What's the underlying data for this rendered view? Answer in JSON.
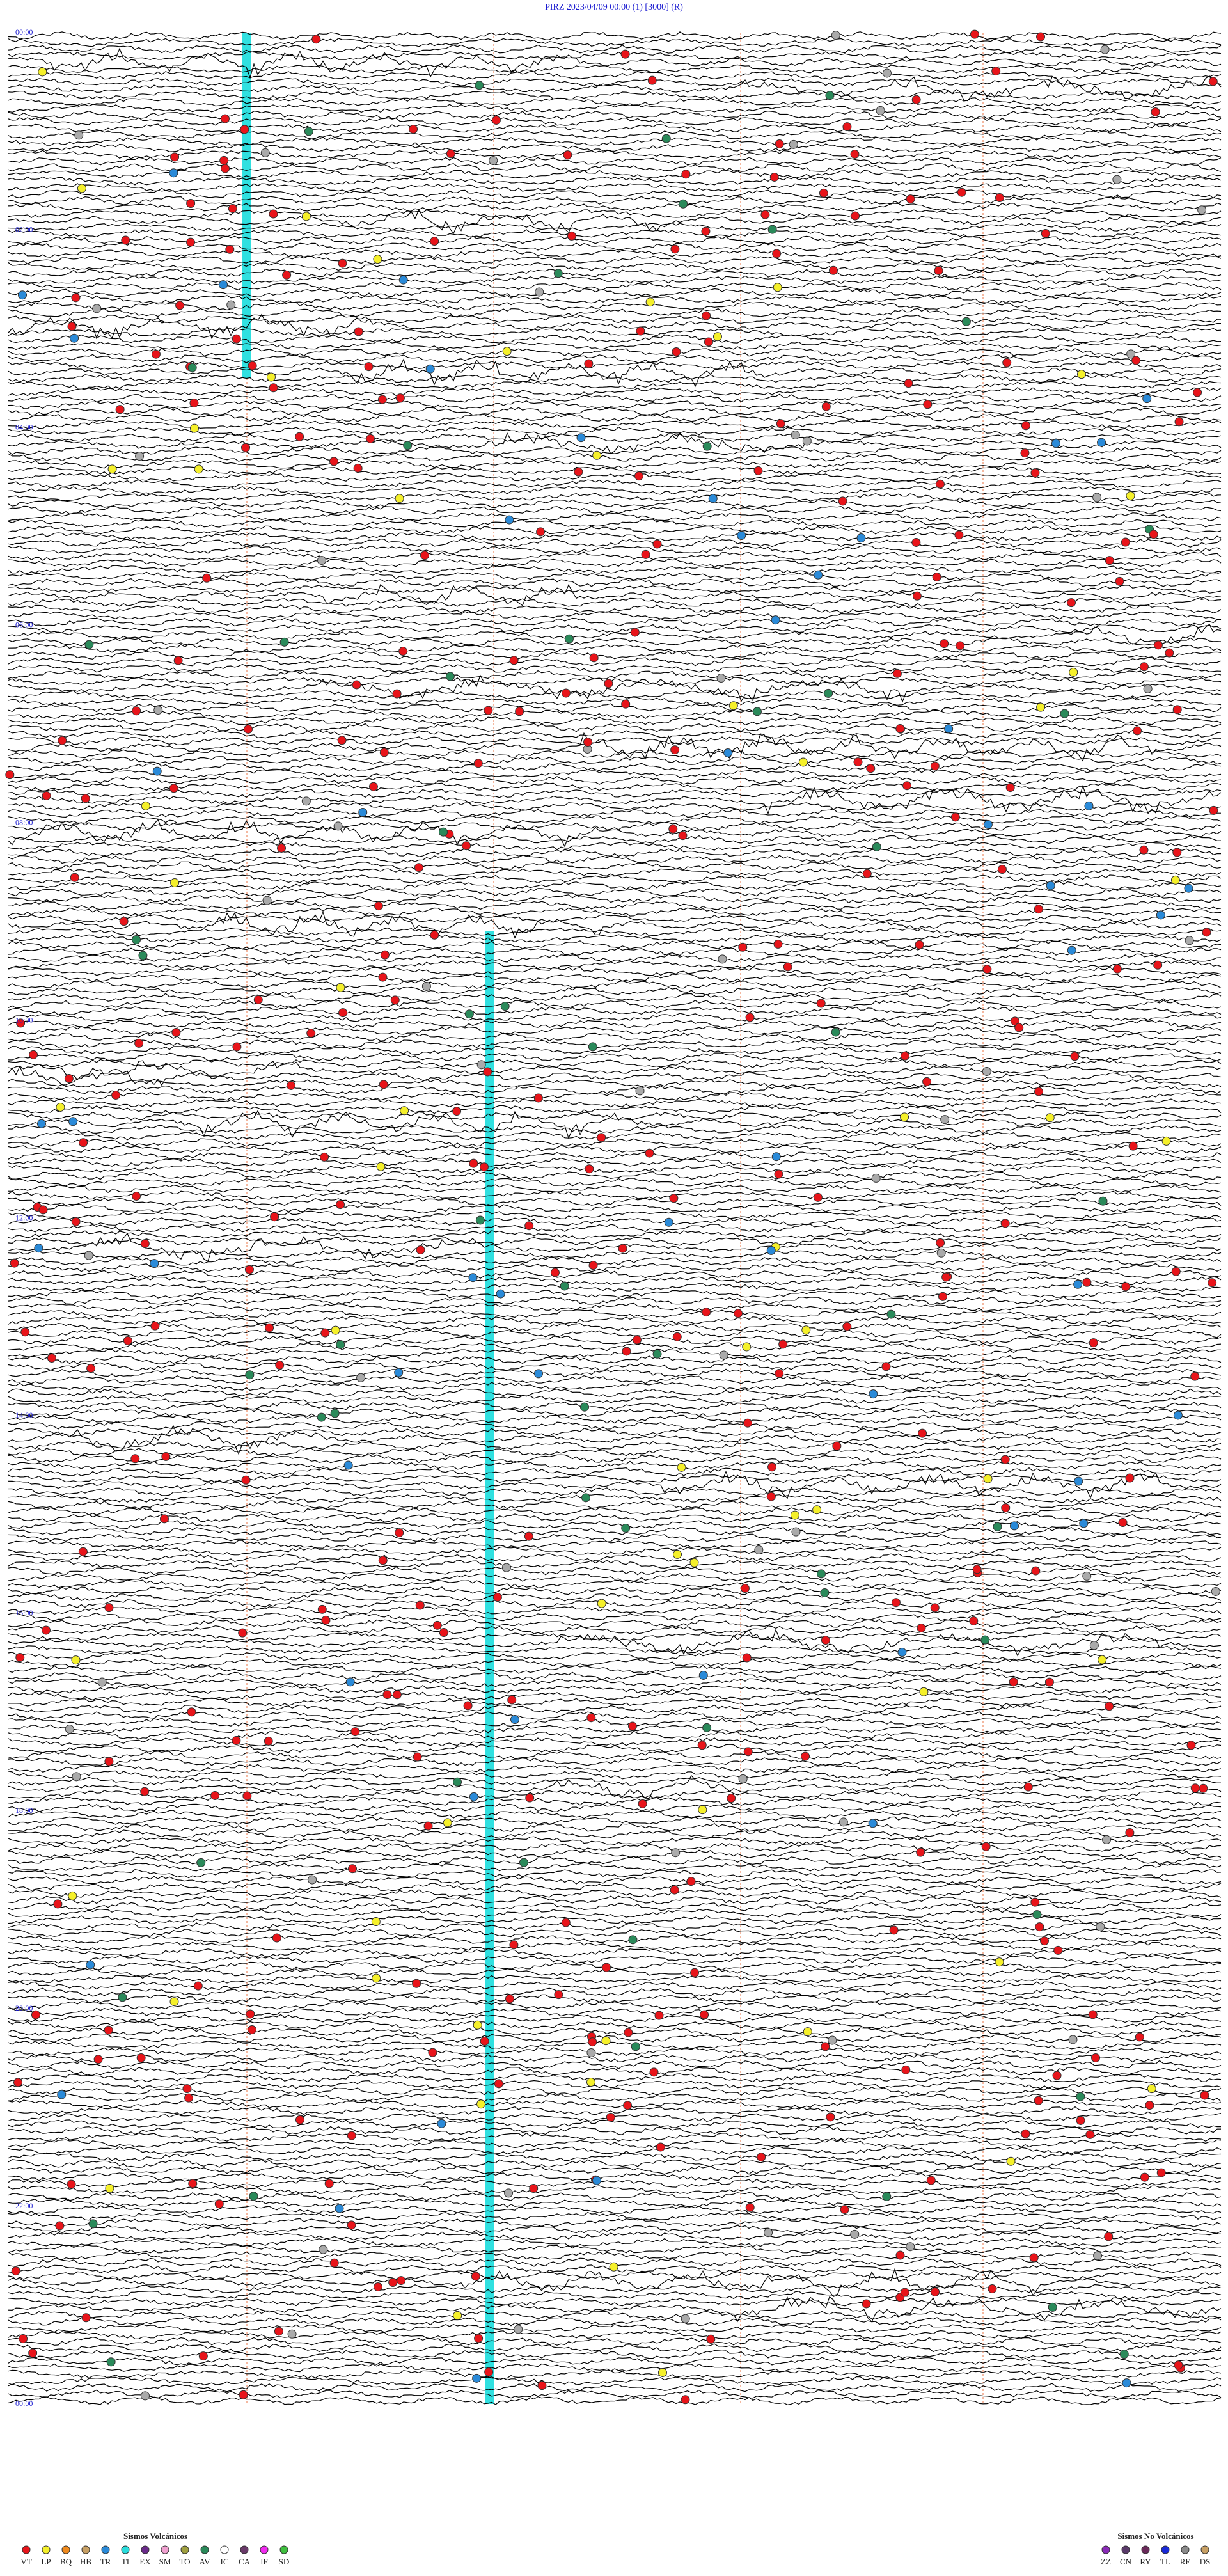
{
  "header": {
    "title": "PIRZ    2023/04/09 00:00    (1)    [3000]  (R)"
  },
  "time_labels": [
    "00:00",
    "02:00",
    "04:00",
    "06:00",
    "08:00",
    "10:00",
    "12:00",
    "14:00",
    "16:00",
    "18:00",
    "20:00",
    "22:00",
    "00:00"
  ],
  "legend": {
    "volcanic": {
      "title": "Sismos Volcánicos",
      "items": [
        {
          "label": "VT",
          "color": "#e8141a"
        },
        {
          "label": "LP",
          "color": "#f5f02a"
        },
        {
          "label": "BQ",
          "color": "#f08a1c"
        },
        {
          "label": "HB",
          "color": "#c8a064"
        },
        {
          "label": "TR",
          "color": "#2a8ad8"
        },
        {
          "label": "TI",
          "color": "#2adcdc"
        },
        {
          "label": "EX",
          "color": "#6a2a8a"
        },
        {
          "label": "SM",
          "color": "#f0a0d0"
        },
        {
          "label": "TO",
          "color": "#a0a040"
        },
        {
          "label": "AV",
          "color": "#2a8a5a"
        },
        {
          "label": "IC",
          "color": "#ffffff"
        },
        {
          "label": "CA",
          "color": "#6a3a6a"
        },
        {
          "label": "IF",
          "color": "#f02af0"
        },
        {
          "label": "SD",
          "color": "#40c040"
        }
      ]
    },
    "non_volcanic": {
      "title": "Sismos No Volcánicos",
      "items": [
        {
          "label": "ZZ",
          "color": "#8a2ab8"
        },
        {
          "label": "CN",
          "color": "#5a3a6a"
        },
        {
          "label": "RY",
          "color": "#6a2a5a"
        },
        {
          "label": "TL",
          "color": "#1a2ad8"
        },
        {
          "label": "RE",
          "color": "#8a8a8a"
        },
        {
          "label": "DS",
          "color": "#c8a064"
        }
      ]
    }
  }
}
